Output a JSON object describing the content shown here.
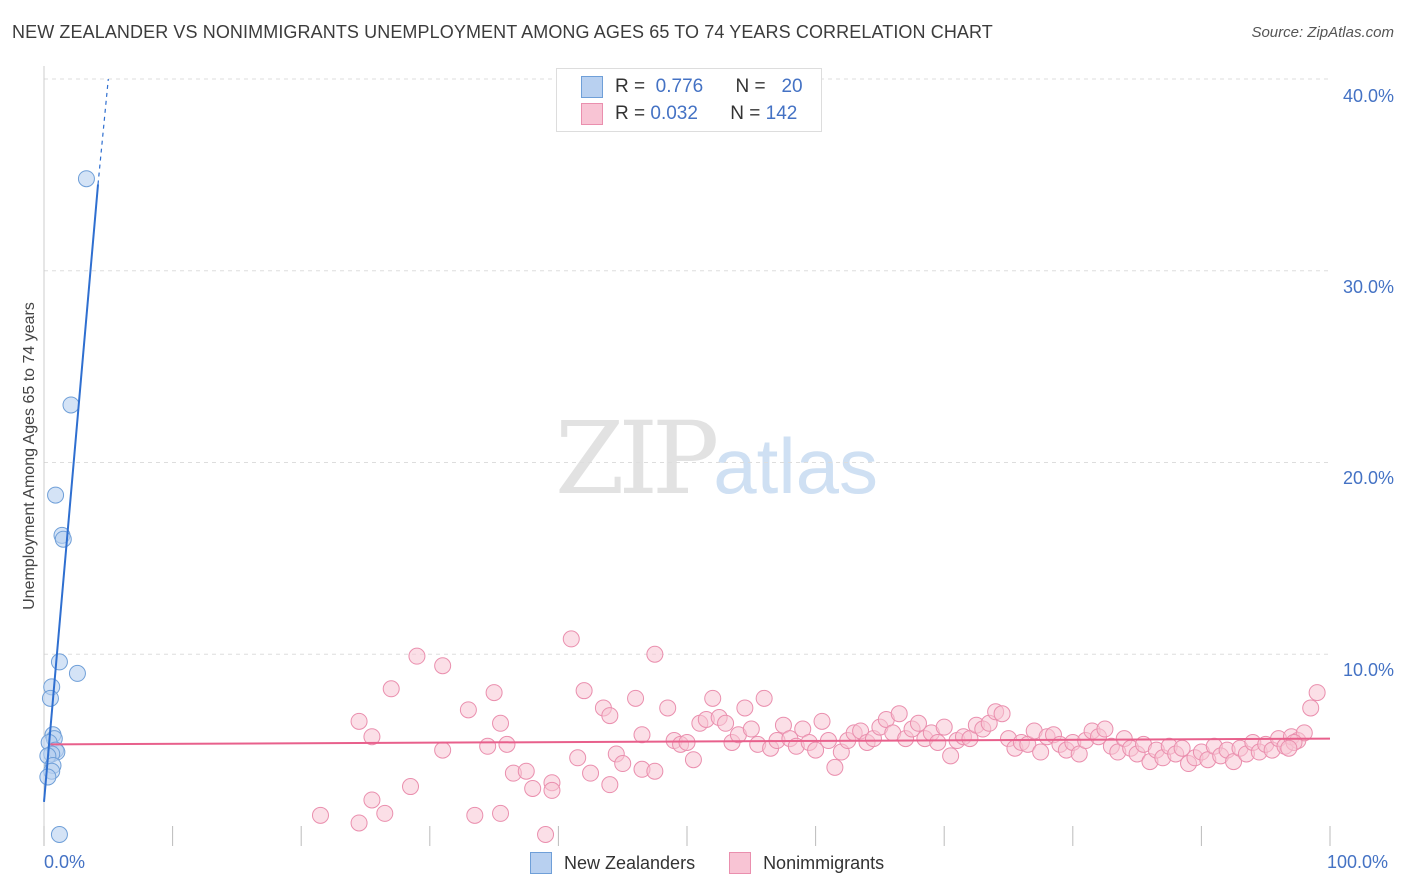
{
  "title": "NEW ZEALANDER VS NONIMMIGRANTS UNEMPLOYMENT AMONG AGES 65 TO 74 YEARS CORRELATION CHART",
  "source": "Source: ZipAtlas.com",
  "watermark": {
    "zip": "ZIP",
    "atlas": "atlas"
  },
  "legend_top": [
    {
      "r_label": "R =",
      "r_value": "0.776",
      "n_label": "N =",
      "n_value": "20"
    },
    {
      "r_label": "R =",
      "r_value": "0.032",
      "n_label": "N =",
      "n_value": "142"
    }
  ],
  "colors": {
    "blue_fill": "#b8d0f0",
    "blue_stroke": "#6f9fd8",
    "blue_line": "#2f6fd0",
    "pink_fill": "#f8c4d4",
    "pink_stroke": "#ea8fae",
    "pink_line": "#e8608c",
    "tick_text": "#4472c4",
    "grid": "#dddddd"
  },
  "chart_data": {
    "type": "scatter",
    "title": "NEW ZEALANDER VS NONIMMIGRANTS UNEMPLOYMENT AMONG AGES 65 TO 74 YEARS CORRELATION CHART",
    "xlabel": "",
    "ylabel": "Unemployment Among Ages 65 to 74 years",
    "xlim": [
      0,
      100
    ],
    "ylim": [
      0,
      40
    ],
    "x_tick_labels": [
      "0.0%",
      "100.0%"
    ],
    "y_ticks": [
      10,
      20,
      30,
      40
    ],
    "y_tick_labels": [
      "10.0%",
      "20.0%",
      "30.0%",
      "40.0%"
    ],
    "grid": true,
    "series": [
      {
        "name": "New Zealanders",
        "r": 0.776,
        "n": 20,
        "trend": {
          "x0": 0,
          "y0": 2.3,
          "x1": 4.2,
          "y1": 34.5,
          "dash_to_x": 5.0,
          "dash_to_y": 40.0
        },
        "points": [
          [
            3.3,
            34.8
          ],
          [
            2.1,
            23.0
          ],
          [
            0.9,
            18.3
          ],
          [
            1.4,
            16.2
          ],
          [
            1.5,
            16.0
          ],
          [
            1.2,
            9.6
          ],
          [
            2.6,
            9.0
          ],
          [
            0.6,
            8.3
          ],
          [
            0.5,
            7.7
          ],
          [
            0.7,
            5.8
          ],
          [
            0.8,
            5.6
          ],
          [
            0.4,
            5.4
          ],
          [
            0.9,
            5.0
          ],
          [
            1.0,
            4.9
          ],
          [
            0.6,
            4.8
          ],
          [
            0.3,
            4.7
          ],
          [
            0.7,
            4.2
          ],
          [
            0.6,
            3.9
          ],
          [
            0.3,
            3.6
          ],
          [
            1.2,
            0.6
          ]
        ]
      },
      {
        "name": "Nonimmigrants",
        "r": 0.032,
        "n": 142,
        "trend": {
          "x0": 0.5,
          "y0": 5.3,
          "x1": 100,
          "y1": 5.6
        },
        "points": [
          [
            21.5,
            1.6
          ],
          [
            24.5,
            1.2
          ],
          [
            25.5,
            2.4
          ],
          [
            26.5,
            1.7
          ],
          [
            28.5,
            3.1
          ],
          [
            33.5,
            1.6
          ],
          [
            35.5,
            1.7
          ],
          [
            39.0,
            0.6
          ],
          [
            24.5,
            6.5
          ],
          [
            25.5,
            5.7
          ],
          [
            27.0,
            8.2
          ],
          [
            29.0,
            9.9
          ],
          [
            31.0,
            9.4
          ],
          [
            31.0,
            5.0
          ],
          [
            33.0,
            7.1
          ],
          [
            35.0,
            8.0
          ],
          [
            35.5,
            6.4
          ],
          [
            34.5,
            5.2
          ],
          [
            36.0,
            5.3
          ],
          [
            36.5,
            3.8
          ],
          [
            37.5,
            3.9
          ],
          [
            38.0,
            3.0
          ],
          [
            39.5,
            3.3
          ],
          [
            39.5,
            2.9
          ],
          [
            41.0,
            10.8
          ],
          [
            41.5,
            4.6
          ],
          [
            42.0,
            8.1
          ],
          [
            42.5,
            3.8
          ],
          [
            43.5,
            7.2
          ],
          [
            44.0,
            6.8
          ],
          [
            44.5,
            4.8
          ],
          [
            44.0,
            3.2
          ],
          [
            45.0,
            4.3
          ],
          [
            46.0,
            7.7
          ],
          [
            46.5,
            5.8
          ],
          [
            46.5,
            4.0
          ],
          [
            47.5,
            3.9
          ],
          [
            47.5,
            10.0
          ],
          [
            48.5,
            7.2
          ],
          [
            49.0,
            5.5
          ],
          [
            49.5,
            5.3
          ],
          [
            50.0,
            5.4
          ],
          [
            50.5,
            4.5
          ],
          [
            51.0,
            6.4
          ],
          [
            51.5,
            6.6
          ],
          [
            52.0,
            7.7
          ],
          [
            52.5,
            6.7
          ],
          [
            53.0,
            6.4
          ],
          [
            53.5,
            5.4
          ],
          [
            54.0,
            5.8
          ],
          [
            54.5,
            7.2
          ],
          [
            55.0,
            6.1
          ],
          [
            55.5,
            5.3
          ],
          [
            56.0,
            7.7
          ],
          [
            56.5,
            5.1
          ],
          [
            57.0,
            5.5
          ],
          [
            57.5,
            6.3
          ],
          [
            58.0,
            5.6
          ],
          [
            58.5,
            5.2
          ],
          [
            59.0,
            6.1
          ],
          [
            59.5,
            5.4
          ],
          [
            60.0,
            5.0
          ],
          [
            60.5,
            6.5
          ],
          [
            61.0,
            5.5
          ],
          [
            61.5,
            4.1
          ],
          [
            62.0,
            4.9
          ],
          [
            62.5,
            5.5
          ],
          [
            63.0,
            5.9
          ],
          [
            63.5,
            6.0
          ],
          [
            64.0,
            5.4
          ],
          [
            64.5,
            5.6
          ],
          [
            65.0,
            6.2
          ],
          [
            65.5,
            6.6
          ],
          [
            66.0,
            5.9
          ],
          [
            66.5,
            6.9
          ],
          [
            67.0,
            5.6
          ],
          [
            67.5,
            6.1
          ],
          [
            68.0,
            6.4
          ],
          [
            68.5,
            5.6
          ],
          [
            69.0,
            5.9
          ],
          [
            69.5,
            5.4
          ],
          [
            70.0,
            6.2
          ],
          [
            70.5,
            4.7
          ],
          [
            71.0,
            5.5
          ],
          [
            71.5,
            5.7
          ],
          [
            72.0,
            5.6
          ],
          [
            72.5,
            6.3
          ],
          [
            73.0,
            6.1
          ],
          [
            73.5,
            6.4
          ],
          [
            74.0,
            7.0
          ],
          [
            74.5,
            6.9
          ],
          [
            75.0,
            5.6
          ],
          [
            75.5,
            5.1
          ],
          [
            76.0,
            5.4
          ],
          [
            76.5,
            5.3
          ],
          [
            77.0,
            6.0
          ],
          [
            77.5,
            4.9
          ],
          [
            78.0,
            5.7
          ],
          [
            78.5,
            5.8
          ],
          [
            79.0,
            5.3
          ],
          [
            79.5,
            5.0
          ],
          [
            80.0,
            5.4
          ],
          [
            80.5,
            4.8
          ],
          [
            81.0,
            5.5
          ],
          [
            81.5,
            6.0
          ],
          [
            82.0,
            5.7
          ],
          [
            82.5,
            6.1
          ],
          [
            83.0,
            5.2
          ],
          [
            83.5,
            4.9
          ],
          [
            84.0,
            5.6
          ],
          [
            84.5,
            5.1
          ],
          [
            85.0,
            4.8
          ],
          [
            85.5,
            5.3
          ],
          [
            86.0,
            4.4
          ],
          [
            86.5,
            5.0
          ],
          [
            87.0,
            4.6
          ],
          [
            87.5,
            5.2
          ],
          [
            88.0,
            4.8
          ],
          [
            88.5,
            5.1
          ],
          [
            89.0,
            4.3
          ],
          [
            89.5,
            4.6
          ],
          [
            90.0,
            4.9
          ],
          [
            90.5,
            4.5
          ],
          [
            91.0,
            5.2
          ],
          [
            91.5,
            4.7
          ],
          [
            92.0,
            5.0
          ],
          [
            92.5,
            4.4
          ],
          [
            93.0,
            5.1
          ],
          [
            93.5,
            4.8
          ],
          [
            94.0,
            5.4
          ],
          [
            94.5,
            4.9
          ],
          [
            95.0,
            5.3
          ],
          [
            95.5,
            5.0
          ],
          [
            96.0,
            5.6
          ],
          [
            96.5,
            5.2
          ],
          [
            97.0,
            5.7
          ],
          [
            97.5,
            5.5
          ],
          [
            98.0,
            5.9
          ],
          [
            98.5,
            7.2
          ],
          [
            99.0,
            8.0
          ],
          [
            97.2,
            5.4
          ],
          [
            96.8,
            5.1
          ]
        ]
      }
    ]
  },
  "bottom_legend": [
    {
      "label": "New Zealanders"
    },
    {
      "label": "Nonimmigrants"
    }
  ]
}
